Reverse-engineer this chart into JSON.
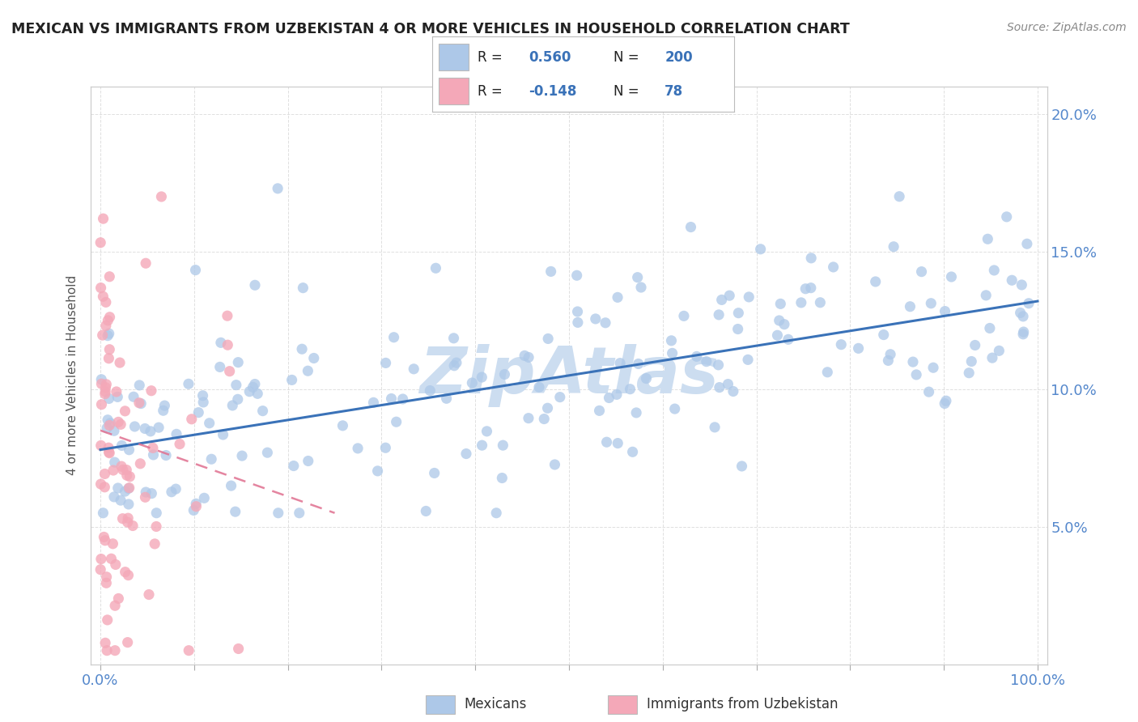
{
  "title": "MEXICAN VS IMMIGRANTS FROM UZBEKISTAN 4 OR MORE VEHICLES IN HOUSEHOLD CORRELATION CHART",
  "source_text": "Source: ZipAtlas.com",
  "ylabel": "4 or more Vehicles in Household",
  "blue_R": 0.56,
  "blue_N": 200,
  "pink_R": -0.148,
  "pink_N": 78,
  "blue_dot_color": "#adc8e8",
  "pink_dot_color": "#f4a8b8",
  "blue_line_color": "#3a72b8",
  "pink_line_color": "#e07090",
  "watermark": "ZipAtlas",
  "watermark_color": "#ccddf0",
  "background_color": "#ffffff",
  "grid_color": "#d8d8d8",
  "title_color": "#222222",
  "source_color": "#888888",
  "axis_label_color": "#5588cc",
  "ylabel_color": "#555555",
  "legend_blue_face": "#adc8e8",
  "legend_pink_face": "#f4a8b8",
  "legend_text_color": "#222222",
  "legend_value_color": "#3a72b8",
  "xlim": [
    0,
    100
  ],
  "ylim": [
    0,
    21
  ],
  "blue_line_x0": 0,
  "blue_line_y0": 7.8,
  "blue_line_x1": 100,
  "blue_line_y1": 13.2,
  "pink_line_x0": 0,
  "pink_line_y0": 8.5,
  "pink_line_x1": 25,
  "pink_line_y1": 5.5
}
